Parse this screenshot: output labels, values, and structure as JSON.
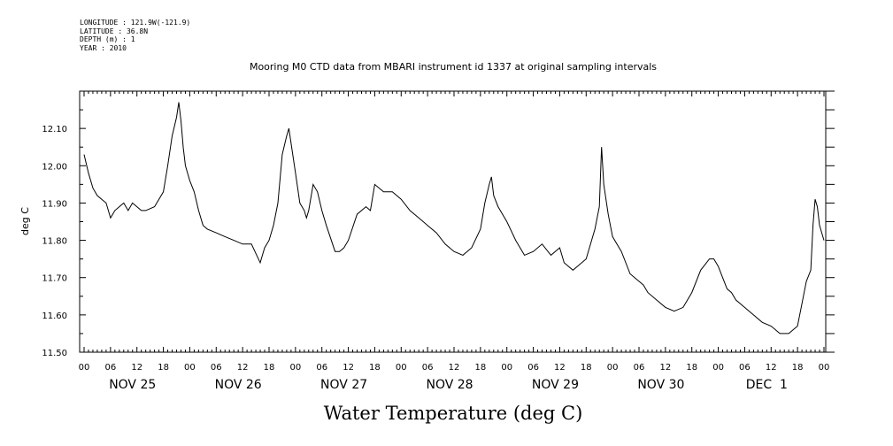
{
  "meta": {
    "longitude": "LONGITUDE : 121.9W(-121.9)",
    "latitude": "LATITUDE : 36.8N",
    "depth": "DEPTH (m) : 1",
    "year": "YEAR : 2010"
  },
  "chart_data": {
    "type": "line",
    "title": "Mooring M0 CTD data from MBARI instrument id 1337 at original sampling intervals",
    "xlabel": "Water Temperature (deg C)",
    "ylabel": "deg C",
    "xlim_hours": [
      0,
      168
    ],
    "ylim": [
      11.5,
      12.2
    ],
    "y_ticks": [
      "11.50",
      "11.60",
      "11.70",
      "11.80",
      "11.90",
      "12.00",
      "12.10"
    ],
    "hour_labels": [
      "00",
      "06",
      "12",
      "18",
      "00",
      "06",
      "12",
      "18",
      "00",
      "06",
      "12",
      "18",
      "00",
      "06",
      "12",
      "18",
      "00",
      "06",
      "12",
      "18",
      "00",
      "06",
      "12",
      "18",
      "00",
      "06",
      "12",
      "18",
      "00"
    ],
    "day_labels": [
      "NOV 25",
      "NOV 26",
      "NOV 27",
      "NOV 28",
      "NOV 29",
      "NOV 30",
      "DEC  1"
    ],
    "grid": false,
    "line_color": "#000000",
    "series": [
      {
        "x": [
          0,
          1,
          2,
          3,
          4,
          5,
          6,
          7,
          8,
          9,
          10,
          11,
          12,
          13,
          14,
          16,
          18,
          19,
          20,
          21,
          21.5,
          22,
          22.5,
          23,
          24,
          25,
          26,
          27,
          28,
          30,
          32,
          34,
          36,
          38,
          40,
          40.5,
          41,
          42,
          43,
          44,
          45,
          46,
          46.5,
          47,
          48,
          49,
          50,
          50.5,
          51,
          52,
          53,
          54,
          55,
          57,
          58,
          59,
          60,
          62,
          64,
          65,
          66,
          68,
          70,
          72,
          74,
          76,
          78,
          80,
          82,
          84,
          86,
          88,
          90,
          91,
          92,
          92.5,
          93,
          94,
          96,
          98,
          100,
          102,
          104,
          106,
          108,
          109,
          110,
          111,
          112,
          114,
          116,
          117,
          117.5,
          118,
          119,
          120,
          122,
          124,
          126,
          127,
          128,
          130,
          132,
          134,
          136,
          138,
          140,
          142,
          143,
          144,
          145,
          146,
          147,
          148,
          150,
          152,
          154,
          156,
          158,
          160,
          162,
          163,
          164,
          165,
          165.5,
          166,
          166.5,
          167,
          168
        ],
        "values": [
          12.03,
          11.98,
          11.94,
          11.92,
          11.91,
          11.9,
          11.86,
          11.88,
          11.89,
          11.9,
          11.88,
          11.9,
          11.89,
          11.88,
          11.88,
          11.89,
          11.93,
          12.0,
          12.08,
          12.13,
          12.17,
          12.12,
          12.05,
          12.0,
          11.96,
          11.93,
          11.88,
          11.84,
          11.83,
          11.82,
          11.81,
          11.8,
          11.79,
          11.79,
          11.74,
          11.76,
          11.78,
          11.8,
          11.84,
          11.9,
          12.03,
          12.08,
          12.1,
          12.06,
          11.98,
          11.9,
          11.88,
          11.86,
          11.88,
          11.95,
          11.93,
          11.88,
          11.84,
          11.77,
          11.77,
          11.78,
          11.8,
          11.87,
          11.89,
          11.88,
          11.95,
          11.93,
          11.93,
          11.91,
          11.88,
          11.86,
          11.84,
          11.82,
          11.79,
          11.77,
          11.76,
          11.78,
          11.83,
          11.9,
          11.95,
          11.97,
          11.92,
          11.89,
          11.85,
          11.8,
          11.76,
          11.77,
          11.79,
          11.76,
          11.78,
          11.74,
          11.73,
          11.72,
          11.73,
          11.75,
          11.83,
          11.89,
          12.05,
          11.95,
          11.87,
          11.81,
          11.77,
          11.71,
          11.69,
          11.68,
          11.66,
          11.64,
          11.62,
          11.61,
          11.62,
          11.66,
          11.72,
          11.75,
          11.75,
          11.73,
          11.7,
          11.67,
          11.66,
          11.64,
          11.62,
          11.6,
          11.58,
          11.57,
          11.55,
          11.55,
          11.57,
          11.63,
          11.69,
          11.72,
          11.84,
          11.91,
          11.89,
          11.84,
          11.8
        ]
      }
    ]
  }
}
